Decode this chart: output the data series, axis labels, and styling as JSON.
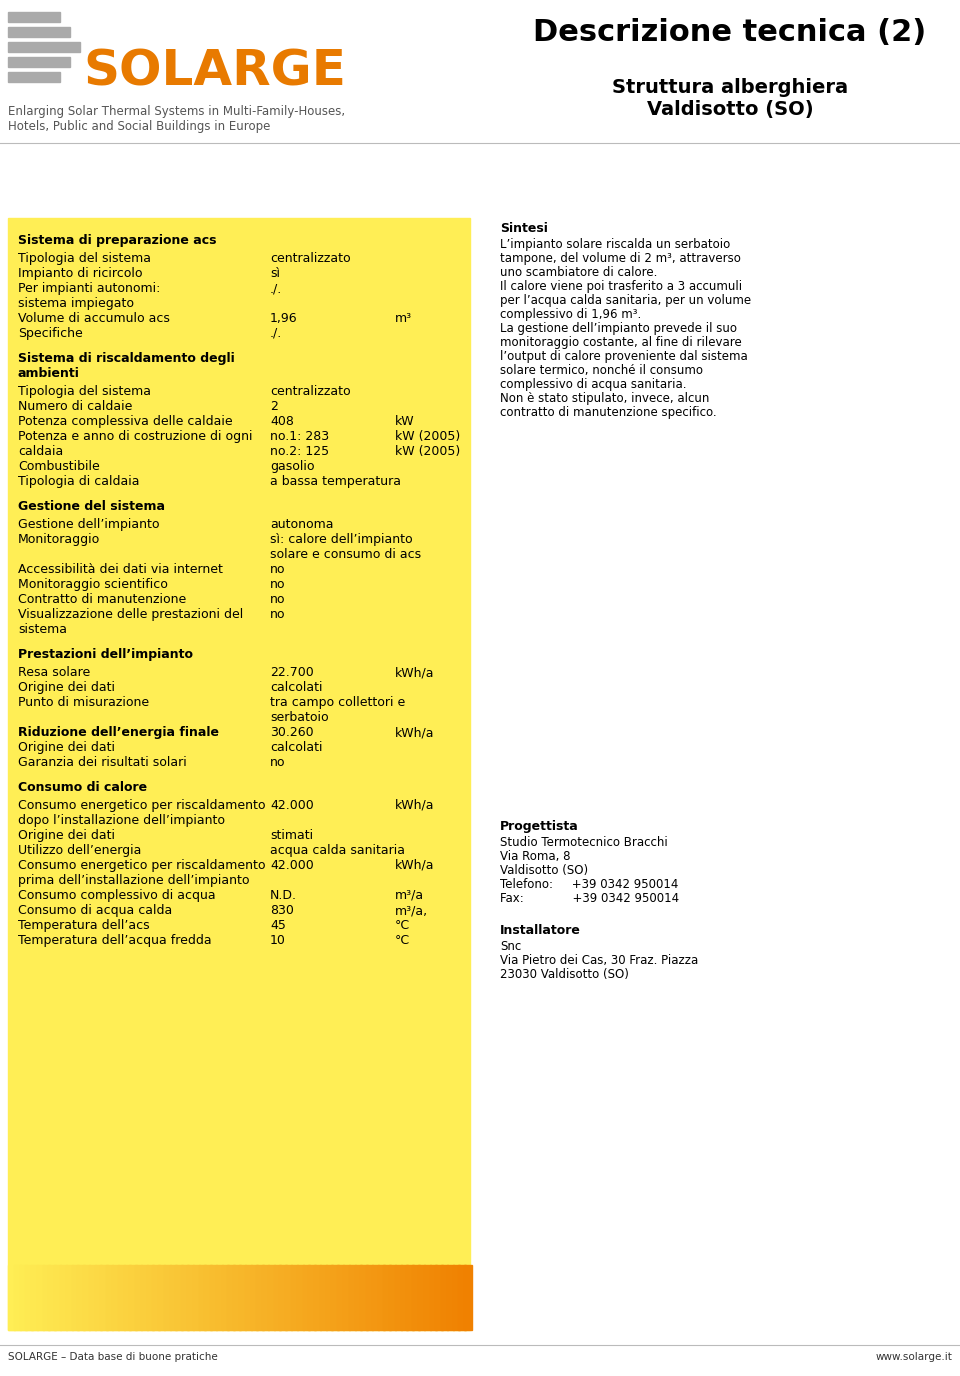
{
  "title_main": "Descrizione tecnica (2)",
  "subtitle1": "Struttura alberghiera",
  "subtitle2": "Valdisotto (SO)",
  "logo_text": "SOLARGE",
  "logo_subtitle1": "Enlarging Solar Thermal Systems in Multi-Family-Houses,",
  "logo_subtitle2": "Hotels, Public and Social Buildings in Europe",
  "footer_left": "SOLARGE – Data base di buone pratiche",
  "footer_right": "www.solarge.it",
  "left_panel": {
    "sections": [
      {
        "header": "Sistema di preparazione acs",
        "rows": [
          {
            "label": "Tipologia del sistema",
            "value": "centralizzato",
            "unit": ""
          },
          {
            "label": "Impianto di ricircolo",
            "value": "sì",
            "unit": ""
          },
          {
            "label": "Per impianti autonomi:",
            "value": "./.",
            "unit": ""
          },
          {
            "label": "sistema impiegato",
            "value": "",
            "unit": ""
          },
          {
            "label": "Volume di accumulo acs",
            "value": "1,96",
            "unit": "m³"
          },
          {
            "label": "Specifiche",
            "value": "./.",
            "unit": ""
          }
        ]
      },
      {
        "header": "Sistema di riscaldamento degli\nambienti",
        "rows": [
          {
            "label": "Tipologia del sistema",
            "value": "centralizzato",
            "unit": ""
          },
          {
            "label": "Numero di caldaie",
            "value": "2",
            "unit": ""
          },
          {
            "label": "Potenza complessiva delle caldaie",
            "value": "408",
            "unit": "kW"
          },
          {
            "label": "Potenza e anno di costruzione di ogni",
            "value": "no.1: 283",
            "unit": "kW (2005)"
          },
          {
            "label": "caldaia",
            "value": "no.2: 125",
            "unit": "kW (2005)"
          },
          {
            "label": "Combustibile",
            "value": "gasolio",
            "unit": ""
          },
          {
            "label": "Tipologia di caldaia",
            "value": "a bassa temperatura",
            "unit": ""
          }
        ]
      },
      {
        "header": "Gestione del sistema",
        "rows": [
          {
            "label": "Gestione dell’impianto",
            "value": "autonoma",
            "unit": ""
          },
          {
            "label": "Monitoraggio",
            "value": "sì: calore dell’impianto",
            "unit": ""
          },
          {
            "label": "",
            "value": "solare e consumo di acs",
            "unit": ""
          },
          {
            "label": "Accessibilità dei dati via internet",
            "value": "no",
            "unit": ""
          },
          {
            "label": "Monitoraggio scientifico",
            "value": "no",
            "unit": ""
          },
          {
            "label": "Contratto di manutenzione",
            "value": "no",
            "unit": ""
          },
          {
            "label": "Visualizzazione delle prestazioni del",
            "value": "no",
            "unit": ""
          },
          {
            "label": "sistema",
            "value": "",
            "unit": ""
          }
        ]
      },
      {
        "header": "Prestazioni dell’impianto",
        "rows": [
          {
            "label": "Resa solare",
            "value": "22.700",
            "unit": "kWh/a"
          },
          {
            "label": "Origine dei dati",
            "value": "calcolati",
            "unit": ""
          },
          {
            "label": "Punto di misurazione",
            "value": "tra campo collettori e",
            "unit": ""
          },
          {
            "label": "",
            "value": "serbatoio",
            "unit": ""
          },
          {
            "label": "Riduzione dell’energia finale",
            "value": "30.260",
            "unit": "kWh/a",
            "bold_label": true
          },
          {
            "label": "Origine dei dati",
            "value": "calcolati",
            "unit": ""
          },
          {
            "label": "Garanzia dei risultati solari",
            "value": "no",
            "unit": ""
          }
        ]
      },
      {
        "header": "Consumo di calore",
        "rows": [
          {
            "label": "Consumo energetico per riscaldamento",
            "value": "42.000",
            "unit": "kWh/a"
          },
          {
            "label": "dopo l’installazione dell’impianto",
            "value": "",
            "unit": ""
          },
          {
            "label": "Origine dei dati",
            "value": "stimati",
            "unit": ""
          },
          {
            "label": "Utilizzo dell’energia",
            "value": "acqua calda sanitaria",
            "unit": ""
          },
          {
            "label": "Consumo energetico per riscaldamento",
            "value": "42.000",
            "unit": "kWh/a"
          },
          {
            "label": "prima dell’installazione dell’impianto",
            "value": "",
            "unit": ""
          },
          {
            "label": "Consumo complessivo di acqua",
            "value": "N.D.",
            "unit": "m³/a"
          },
          {
            "label": "Consumo di acqua calda",
            "value": "830",
            "unit": "m³/a,"
          },
          {
            "label": "Temperatura dell’acs",
            "value": "45",
            "unit": "°C"
          },
          {
            "label": "Temperatura dell’acqua fredda",
            "value": "10",
            "unit": "°C"
          }
        ]
      }
    ]
  },
  "right_panel": {
    "sintesi_header": "Sintesi",
    "sintesi_lines": [
      "L’impianto solare riscalda un serbatoio",
      "tampone, del volume di 2 m³, attraverso",
      "uno scambiatore di calore.",
      "Il calore viene poi trasferito a 3 accumuli",
      "per l’acqua calda sanitaria, per un volume",
      "complessivo di 1,96 m³.",
      "La gestione dell’impianto prevede il suo",
      "monitoraggio costante, al fine di rilevare",
      "l’output di calore proveniente dal sistema",
      "solare termico, nonché il consumo",
      "complessivo di acqua sanitaria.",
      "Non è stato stipulato, invece, alcun",
      "contratto di manutenzione specifico."
    ],
    "progettista_header": "Progettista",
    "progettista_lines": [
      "Studio Termotecnico Bracchi",
      "Via Roma, 8",
      "Valdisotto (SO)",
      "Telefono:     +39 0342 950014",
      "Fax:             +39 0342 950014"
    ],
    "installatore_header": "Installatore",
    "installatore_lines": [
      "Snc",
      "Via Pietro dei Cas, 30 Fraz. Piazza",
      "23030 Valdisotto (SO)"
    ]
  }
}
